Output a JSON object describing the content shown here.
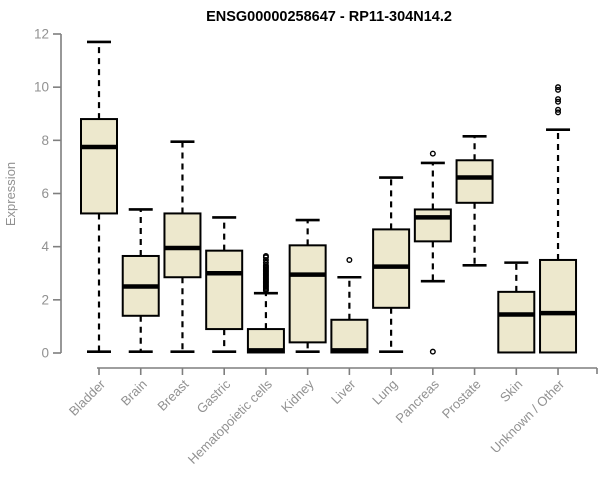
{
  "chart_data": {
    "type": "boxplot",
    "title": "ENSG00000258647 - RP11-304N14.2",
    "ylabel": "Expression",
    "xlabel": "",
    "ylim": [
      0,
      12
    ],
    "yticks": [
      0,
      2,
      4,
      6,
      8,
      10,
      12
    ],
    "grid": false,
    "legend_position": "none",
    "colors": {
      "box_fill": "#EDE8CD",
      "box_stroke": "#000000",
      "median": "#000000",
      "whisker": "#000000",
      "outlier": "#000000",
      "axis": "#7F7F7F",
      "tick_label": "#919191",
      "title": "#000000",
      "background": "#FFFFFF"
    },
    "categories": [
      "Bladder",
      "Brain",
      "Breast",
      "Gastric",
      "Hematopoietic cells",
      "Kidney",
      "Liver",
      "Lung",
      "Pancreas",
      "Prostate",
      "Skin",
      "Unknown / Other"
    ],
    "series": [
      {
        "category": "Bladder",
        "whisker_low": 0.05,
        "q1": 5.25,
        "median": 7.75,
        "q3": 8.8,
        "whisker_high": 11.7,
        "outliers": []
      },
      {
        "category": "Brain",
        "whisker_low": 0.05,
        "q1": 1.4,
        "median": 2.5,
        "q3": 3.65,
        "whisker_high": 5.4,
        "outliers": []
      },
      {
        "category": "Breast",
        "whisker_low": 0.05,
        "q1": 2.85,
        "median": 3.95,
        "q3": 5.25,
        "whisker_high": 7.95,
        "outliers": []
      },
      {
        "category": "Gastric",
        "whisker_low": 0.05,
        "q1": 0.9,
        "median": 3.0,
        "q3": 3.85,
        "whisker_high": 5.1,
        "outliers": []
      },
      {
        "category": "Hematopoietic cells",
        "whisker_low": 0.0,
        "q1": 0.02,
        "median": 0.1,
        "q3": 0.9,
        "whisker_high": 2.25,
        "outliers": [
          2.35,
          2.4,
          2.45,
          2.5,
          2.55,
          2.6,
          2.65,
          2.7,
          2.75,
          2.8,
          2.85,
          2.9,
          2.95,
          3.0,
          3.05,
          3.1,
          3.15,
          3.2,
          3.25,
          3.3,
          3.4,
          3.5,
          3.6,
          3.65
        ]
      },
      {
        "category": "Kidney",
        "whisker_low": 0.05,
        "q1": 0.4,
        "median": 2.95,
        "q3": 4.05,
        "whisker_high": 5.0,
        "outliers": []
      },
      {
        "category": "Liver",
        "whisker_low": 0.0,
        "q1": 0.02,
        "median": 0.1,
        "q3": 1.25,
        "whisker_high": 2.85,
        "outliers": [
          3.5
        ]
      },
      {
        "category": "Lung",
        "whisker_low": 0.05,
        "q1": 1.7,
        "median": 3.25,
        "q3": 4.65,
        "whisker_high": 6.6,
        "outliers": []
      },
      {
        "category": "Pancreas",
        "whisker_low": 2.7,
        "q1": 4.2,
        "median": 5.1,
        "q3": 5.4,
        "whisker_high": 7.15,
        "outliers": [
          7.5,
          0.05
        ]
      },
      {
        "category": "Prostate",
        "whisker_low": 3.3,
        "q1": 5.65,
        "median": 6.6,
        "q3": 7.25,
        "whisker_high": 8.15,
        "outliers": []
      },
      {
        "category": "Skin",
        "whisker_low": 0.0,
        "q1": 0.02,
        "median": 1.45,
        "q3": 2.3,
        "whisker_high": 3.4,
        "outliers": []
      },
      {
        "category": "Unknown / Other",
        "whisker_low": 0.0,
        "q1": 0.02,
        "median": 1.5,
        "q3": 3.5,
        "whisker_high": 8.4,
        "outliers": [
          10.0,
          9.9,
          9.55,
          9.45,
          9.15,
          9.05
        ]
      }
    ]
  }
}
